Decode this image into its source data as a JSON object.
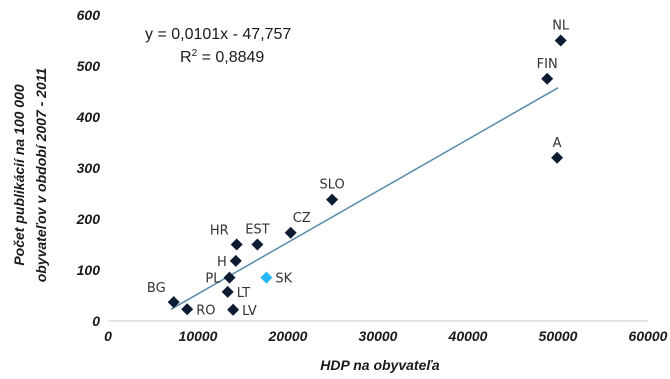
{
  "chart_data": {
    "type": "scatter",
    "xlabel": "HDP na obyvateľa",
    "ylabel_lines": [
      "Počet publikácií na 100 000",
      "obyvateľov v období 2007 - 2011"
    ],
    "xlim": [
      0,
      60000
    ],
    "ylim": [
      0,
      600
    ],
    "x_ticks": [
      0,
      10000,
      20000,
      30000,
      40000,
      50000,
      60000
    ],
    "y_ticks": [
      0,
      100,
      200,
      300,
      400,
      500,
      600
    ],
    "grid": false,
    "equation": "y = 0,0101x - 47,757",
    "r2_prefix": "R",
    "r2_sup": "2",
    "r2_suffix": " = 0,8849",
    "trendline": {
      "slope": 0.0101,
      "intercept": -47.757,
      "x_range": [
        7000,
        50000
      ],
      "color": "#5a8ca8"
    },
    "marker_color": "#0d1b33",
    "highlight_color": "#29b6f6",
    "points": [
      {
        "label": "BG",
        "x": 7300,
        "y": 37,
        "highlight": false,
        "label_pos": "left-up"
      },
      {
        "label": "RO",
        "x": 8800,
        "y": 23,
        "highlight": false,
        "label_pos": "right"
      },
      {
        "label": "LV",
        "x": 13900,
        "y": 22,
        "highlight": false,
        "label_pos": "right"
      },
      {
        "label": "LT",
        "x": 13300,
        "y": 57,
        "highlight": false,
        "label_pos": "right"
      },
      {
        "label": "PL",
        "x": 13500,
        "y": 85,
        "highlight": false,
        "label_pos": "left"
      },
      {
        "label": "H",
        "x": 14200,
        "y": 118,
        "highlight": false,
        "label_pos": "left"
      },
      {
        "label": "HR",
        "x": 14300,
        "y": 150,
        "highlight": false,
        "label_pos": "left-up"
      },
      {
        "label": "EST",
        "x": 16600,
        "y": 150,
        "highlight": false,
        "label_pos": "up"
      },
      {
        "label": "SK",
        "x": 17600,
        "y": 85,
        "highlight": true,
        "label_pos": "right"
      },
      {
        "label": "CZ",
        "x": 20300,
        "y": 173,
        "highlight": false,
        "label_pos": "right-up"
      },
      {
        "label": "SLO",
        "x": 24900,
        "y": 238,
        "highlight": false,
        "label_pos": "up"
      },
      {
        "label": "FIN",
        "x": 48800,
        "y": 475,
        "highlight": false,
        "label_pos": "up"
      },
      {
        "label": "NL",
        "x": 50300,
        "y": 550,
        "highlight": false,
        "label_pos": "up"
      },
      {
        "label": "A",
        "x": 49900,
        "y": 320,
        "highlight": false,
        "label_pos": "up"
      }
    ]
  }
}
